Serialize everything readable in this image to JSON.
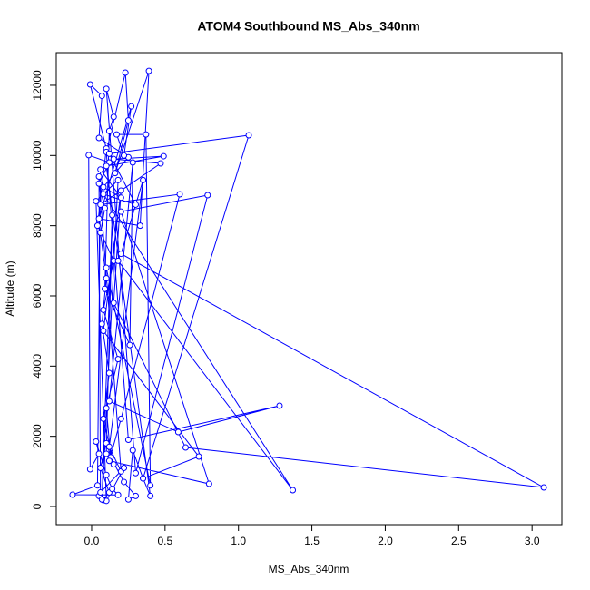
{
  "chart_data": {
    "type": "line",
    "title": "ATOM4 Southbound MS_Abs_340nm",
    "x_label": "MS_Abs_340nm",
    "y_label": "Altitude (m)",
    "xlim": [
      -0.241,
      3.203
    ],
    "ylim": [
      -517,
      12930
    ],
    "xticks": [
      {
        "value": 0,
        "label": "0.0"
      },
      0.5,
      {
        "value": 1,
        "label": "1.0"
      },
      1.5,
      {
        "value": 2,
        "label": "2.0"
      },
      2.5,
      {
        "value": 3,
        "label": "3.0"
      }
    ],
    "yticks": [
      0,
      2000,
      4000,
      6000,
      8000,
      10000,
      12000
    ],
    "grid": false,
    "series": [
      {
        "color": "#0000ff",
        "x": [
          0.05,
          0.08,
          0.12,
          0.06,
          0.1,
          0.15,
          0.08,
          0.12,
          0.07,
          0.1,
          0.06,
          0.09,
          0.05,
          0.12,
          -0.02,
          -0.01,
          0.05,
          0.03,
          0.1,
          0.14,
          0.18,
          -0.13,
          0.04,
          0.06,
          0.2,
          0.08,
          0.25,
          0.05,
          0.07,
          -0.01,
          0.1,
          0.04,
          0.15,
          0.08,
          0.18,
          0.1,
          0.13,
          0.22,
          0.3,
          0.25,
          0.28,
          0.35,
          0.4,
          0.1,
          0.49,
          0.15,
          0.47,
          0.06,
          0.6,
          0.2,
          0.12,
          0.8,
          0.2,
          0.79,
          0.3,
          0.1,
          0.15,
          0.12,
          0.09,
          0.26,
          0.28,
          0.12,
          0.59,
          1.28,
          0.25,
          0.1,
          0.23,
          0.25,
          0.16,
          0.39,
          0.33,
          0.05,
          0.27,
          0.22,
          0.17,
          0.37,
          0.4,
          0.1,
          0.18,
          1.37,
          0.08,
          0.3,
          0.12,
          1.07,
          0.35,
          0.73,
          0.08,
          0.2,
          0.15,
          0.64,
          3.08,
          0.2,
          0.35,
          0.12,
          0.2,
          0.05,
          0.06,
          0.22,
          0.1,
          0.03,
          0.18,
          0.07,
          0.14,
          0.1
        ],
        "values": [
          300,
          180,
          400,
          1100,
          1800,
          1200,
          2500,
          3800,
          5200,
          6500,
          7800,
          8500,
          9200,
          9800,
          10010,
          1060,
          1500,
          1850,
          900,
          500,
          330,
          336,
          600,
          9600,
          8800,
          9100,
          9950,
          10500,
          11700,
          12025,
          10200,
          8000,
          7000,
          5600,
          4200,
          2800,
          1400,
          700,
          300,
          200,
          1600,
          800,
          300,
          9700,
          9980,
          9900,
          9775,
          8600,
          8895,
          2500,
          1300,
          646,
          8400,
          8870,
          950,
          11900,
          11100,
          10700,
          6200,
          4600,
          9800,
          3000,
          2120,
          2870,
          1900,
          10100,
          12360,
          11000,
          9500,
          12410,
          8000,
          8200,
          11400,
          10000,
          10600,
          10600,
          600,
          6800,
          7000,
          465,
          8900,
          8600,
          10050,
          10576,
          800,
          1422,
          5000,
          9000,
          5800,
          1680,
          543,
          7200,
          9300,
          1700,
          1000,
          9400,
          400,
          1100,
          160,
          8700,
          9300,
          200,
          8300,
          1500
        ]
      }
    ]
  }
}
